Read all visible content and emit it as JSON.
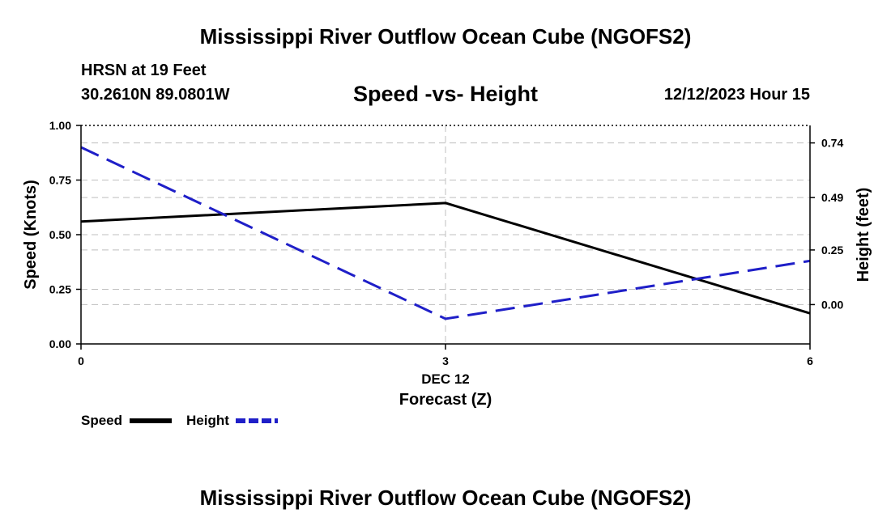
{
  "header": {
    "title": "Mississippi River Outflow Ocean Cube (NGOFS2)",
    "station": "HRSN at 19 Feet",
    "coords": "30.2610N  89.0801W",
    "subtitle": "Speed -vs- Height",
    "timestamp": "12/12/2023 Hour 15"
  },
  "footer": {
    "title": "Mississippi River Outflow Ocean Cube (NGOFS2)"
  },
  "colors": {
    "speed": "#000000",
    "height": "#1f1fc8",
    "grid": "#bfbfbf"
  },
  "chart_data": {
    "type": "line",
    "xlabel": "Forecast (Z)",
    "ylabel": "Speed (Knots)",
    "y2label": "Height (feet)",
    "xlim": [
      0,
      6
    ],
    "ylim": [
      0,
      1.0
    ],
    "y2lim": [
      -0.18,
      0.82
    ],
    "x_ticks": [
      0,
      3,
      6
    ],
    "x_tick_labels": [
      "0",
      "3",
      "6"
    ],
    "date_label": "DEC 12",
    "y_ticks": [
      0,
      0.25,
      0.5,
      0.75,
      1.0
    ],
    "y_tick_labels": [
      "0.00",
      "0.25",
      "0.50",
      "0.75",
      "1.00"
    ],
    "y2_ticks": [
      0.0,
      0.25,
      0.49,
      0.74
    ],
    "y2_tick_labels": [
      "0.00",
      "0.25",
      "0.49",
      "0.74"
    ],
    "grid": true,
    "series": [
      {
        "name": "Speed",
        "axis": "left",
        "style": "solid",
        "x": [
          0,
          3,
          6
        ],
        "values": [
          0.56,
          0.645,
          0.14
        ]
      },
      {
        "name": "Height",
        "axis": "right",
        "style": "dashed",
        "x": [
          0,
          3,
          6
        ],
        "values": [
          0.72,
          -0.065,
          0.2
        ]
      }
    ],
    "legend": {
      "position": "bottom-left",
      "entries": [
        "Speed",
        "Height"
      ]
    }
  }
}
